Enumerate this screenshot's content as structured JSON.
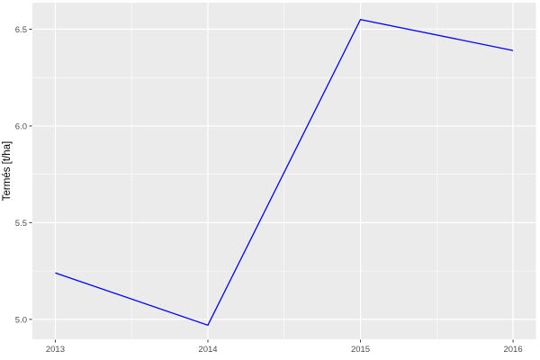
{
  "figure": {
    "page_background": "#FFFFFF"
  },
  "chart_data": {
    "type": "line",
    "title": "",
    "xlabel": "",
    "ylabel": "Termés [t/ha]",
    "x": [
      2013,
      2014,
      2015,
      2016
    ],
    "series": [
      {
        "name": "termes",
        "values": [
          5.24,
          4.97,
          6.55,
          6.39
        ]
      }
    ],
    "x_tick_labels": [
      "2013",
      "2014",
      "2015",
      "2016"
    ],
    "x_tick_values": [
      2013,
      2014,
      2015,
      2016
    ],
    "y_tick_labels": [
      "5.0",
      "5.5",
      "6.0",
      "6.5"
    ],
    "y_tick_values": [
      5.0,
      5.5,
      6.0,
      6.5
    ],
    "xlim": [
      2012.85,
      2016.15
    ],
    "ylim": [
      4.897,
      6.637
    ],
    "grid": "major+minor",
    "legend": "none",
    "colors": {
      "line": "#0000FF",
      "panel_background": "#EBEBEB",
      "gridline": "#FFFFFF",
      "tick_text": "#4D4D4D",
      "tick_mark": "#333333",
      "axis_title": "#000000",
      "page_background": "#FFFFFF"
    }
  }
}
